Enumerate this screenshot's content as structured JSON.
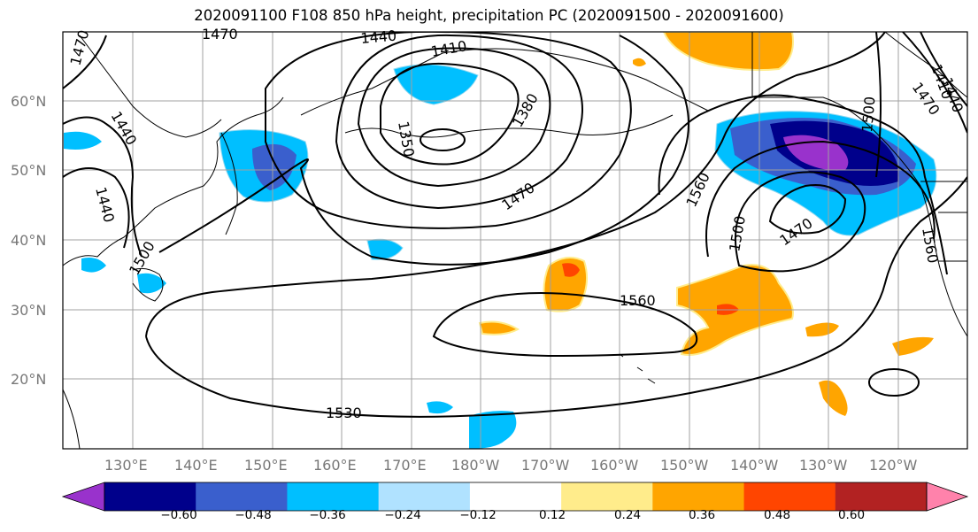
{
  "title": "2020091100 F108 850 hPa height, precipitation PC (2020091500 - 2020091600)",
  "lat_labels": [
    "60°N",
    "50°N",
    "40°N",
    "30°N",
    "20°N"
  ],
  "lon_labels": [
    "130°E",
    "140°E",
    "150°E",
    "160°E",
    "170°E",
    "180°W",
    "170°W",
    "160°W",
    "150°W",
    "140°W",
    "130°W",
    "120°W"
  ],
  "contour_labels": [
    "1470",
    "1440",
    "1410",
    "1380",
    "1350",
    "1470",
    "1440",
    "1440",
    "1470",
    "1560",
    "1500",
    "1470",
    "1560",
    "1530",
    "1500",
    "1410",
    "1470",
    "1500",
    "1440",
    "1560"
  ],
  "colorbar": {
    "colors": [
      "#9932cc",
      "#00008b",
      "#3a5fcd",
      "#00bfff",
      "#b0e2ff",
      "#ffffff",
      "#ffec8b",
      "#ffa500",
      "#ff4500",
      "#b22222",
      "#ff82ab"
    ],
    "tick_labels": [
      "−0.60",
      "−0.48",
      "−0.36",
      "−0.24",
      "−0.12",
      "0.12",
      "0.24",
      "0.36",
      "0.48",
      "0.60"
    ]
  }
}
